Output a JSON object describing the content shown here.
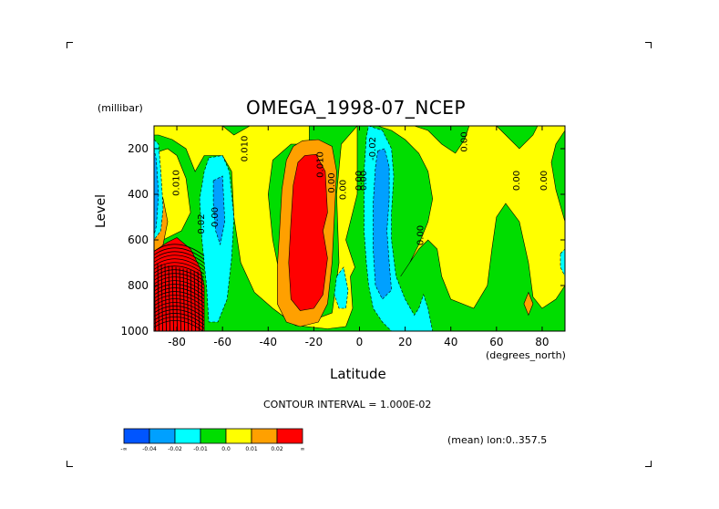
{
  "chart_data": {
    "type": "heatmap",
    "title": "OMEGA_1998-07_NCEP",
    "xlabel": "Latitude",
    "xunits": "(degrees_north)",
    "ylabel": "Level",
    "yunits": "(millibar)",
    "xlim": [
      -90,
      90
    ],
    "ylim": [
      1000,
      100
    ],
    "xticks": [
      -80,
      -60,
      -40,
      -20,
      0,
      20,
      40,
      60,
      80
    ],
    "xtick_labels": [
      "-80",
      "-60",
      "-40",
      "-20",
      "0",
      "20",
      "40",
      "60",
      "80"
    ],
    "yticks": [
      200,
      400,
      600,
      800,
      1000
    ],
    "ytick_labels": [
      "200",
      "400",
      "600",
      "800",
      "1000"
    ],
    "contour_interval_text": "CONTOUR INTERVAL = 1.000E-02",
    "mean_note": "(mean) lon:0..357.5",
    "colorbar": {
      "colors": [
        "#0055ff",
        "#00a0ff",
        "#00ffff",
        "#00dd00",
        "#ffff00",
        "#ffa000",
        "#ff0000"
      ],
      "labels": [
        "-∞",
        "-0.04",
        "-0.02",
        "-0.01",
        "0.0",
        "0.01",
        "0.02",
        "∞"
      ]
    },
    "background_color": "#00dd00",
    "regions": [
      {
        "level": 0.0,
        "color": "#ffff00",
        "poly": [
          [
            -90,
            100
          ],
          [
            -60,
            100
          ],
          [
            -55,
            140
          ],
          [
            -48,
            100
          ],
          [
            -22,
            100
          ],
          [
            -22,
            180
          ],
          [
            -30,
            180
          ],
          [
            -38,
            250
          ],
          [
            -40,
            400
          ],
          [
            -38,
            600
          ],
          [
            -34,
            800
          ],
          [
            -30,
            880
          ],
          [
            -28,
            930
          ],
          [
            -20,
            950
          ],
          [
            -12,
            920
          ],
          [
            -9,
            700
          ],
          [
            -10,
            400
          ],
          [
            -8,
            180
          ],
          [
            -1,
            100
          ],
          [
            -1,
            400
          ],
          [
            -6,
            600
          ],
          [
            -2,
            720
          ],
          [
            -4,
            760
          ],
          [
            -3,
            900
          ],
          [
            -6,
            980
          ],
          [
            -14,
            990
          ],
          [
            -28,
            975
          ],
          [
            -38,
            900
          ],
          [
            -46,
            830
          ],
          [
            -52,
            700
          ],
          [
            -55,
            500
          ],
          [
            -56,
            300
          ],
          [
            -60,
            230
          ],
          [
            -68,
            230
          ],
          [
            -72,
            300
          ],
          [
            -76,
            200
          ],
          [
            -82,
            160
          ],
          [
            -88,
            140
          ],
          [
            -90,
            140
          ]
        ]
      },
      {
        "level": 0.0,
        "color": "#ffff00",
        "poly": [
          [
            -90,
            220
          ],
          [
            -84,
            200
          ],
          [
            -80,
            230
          ],
          [
            -76,
            330
          ],
          [
            -74,
            480
          ],
          [
            -78,
            560
          ],
          [
            -86,
            600
          ],
          [
            -90,
            600
          ]
        ]
      },
      {
        "level": 0.0,
        "color": "#ffff00",
        "poly": [
          [
            8,
            100
          ],
          [
            14,
            120
          ],
          [
            20,
            160
          ],
          [
            26,
            220
          ],
          [
            30,
            300
          ],
          [
            32,
            420
          ],
          [
            30,
            520
          ],
          [
            26,
            620
          ],
          [
            22,
            700
          ],
          [
            18,
            760
          ],
          [
            22,
            700
          ],
          [
            26,
            640
          ],
          [
            30,
            600
          ],
          [
            34,
            640
          ],
          [
            36,
            760
          ],
          [
            40,
            860
          ],
          [
            50,
            900
          ],
          [
            56,
            800
          ],
          [
            58,
            640
          ],
          [
            60,
            500
          ],
          [
            64,
            440
          ],
          [
            70,
            520
          ],
          [
            74,
            700
          ],
          [
            76,
            850
          ],
          [
            80,
            900
          ],
          [
            86,
            860
          ],
          [
            90,
            800
          ],
          [
            90,
            520
          ],
          [
            86,
            380
          ],
          [
            84,
            260
          ],
          [
            86,
            180
          ],
          [
            90,
            120
          ],
          [
            90,
            100
          ],
          [
            78,
            100
          ],
          [
            76,
            140
          ],
          [
            70,
            200
          ],
          [
            64,
            140
          ],
          [
            60,
            100
          ],
          [
            48,
            100
          ],
          [
            46,
            160
          ],
          [
            42,
            220
          ],
          [
            36,
            180
          ],
          [
            30,
            120
          ],
          [
            24,
            100
          ]
        ]
      },
      {
        "level": 0.01,
        "color": "#ffa000",
        "poly": [
          [
            -90,
            320
          ],
          [
            -86,
            420
          ],
          [
            -84,
            520
          ],
          [
            -86,
            620
          ],
          [
            -90,
            680
          ]
        ]
      },
      {
        "level": 0.01,
        "color": "#ffa000",
        "poly": [
          [
            -80,
            640
          ],
          [
            -74,
            720
          ],
          [
            -70,
            820
          ],
          [
            -74,
            920
          ],
          [
            -84,
            980
          ],
          [
            -88,
            900
          ],
          [
            -88,
            760
          ],
          [
            -84,
            680
          ]
        ]
      },
      {
        "level": 0.01,
        "color": "#ffa000",
        "poly": [
          [
            -25,
            165
          ],
          [
            -18,
            160
          ],
          [
            -12,
            190
          ],
          [
            -10,
            300
          ],
          [
            -11,
            500
          ],
          [
            -12,
            700
          ],
          [
            -14,
            880
          ],
          [
            -18,
            960
          ],
          [
            -26,
            980
          ],
          [
            -32,
            960
          ],
          [
            -36,
            880
          ],
          [
            -36,
            720
          ],
          [
            -35,
            560
          ],
          [
            -34,
            380
          ],
          [
            -32,
            250
          ],
          [
            -29,
            190
          ]
        ]
      },
      {
        "level": 0.01,
        "color": "#ffa000",
        "poly": [
          [
            74,
            830
          ],
          [
            76,
            880
          ],
          [
            74,
            930
          ],
          [
            72,
            880
          ]
        ]
      },
      {
        "level": 0.02,
        "color": "#ff0000",
        "poly": [
          [
            -24,
            230
          ],
          [
            -19,
            225
          ],
          [
            -15,
            300
          ],
          [
            -14,
            480
          ],
          [
            -16,
            560
          ],
          [
            -14,
            680
          ],
          [
            -16,
            840
          ],
          [
            -20,
            900
          ],
          [
            -26,
            910
          ],
          [
            -30,
            860
          ],
          [
            -31,
            700
          ],
          [
            -30,
            520
          ],
          [
            -29,
            360
          ],
          [
            -27,
            260
          ]
        ]
      },
      {
        "level": 0.02,
        "color": "#ff0000",
        "poly": [
          [
            -90,
            650
          ],
          [
            -84,
            610
          ],
          [
            -80,
            590
          ],
          [
            -74,
            640
          ],
          [
            -70,
            720
          ],
          [
            -68,
            800
          ],
          [
            -68,
            1000
          ],
          [
            -90,
            1000
          ]
        ]
      },
      {
        "level": -0.01,
        "color": "#00ffff",
        "poly": [
          [
            -90,
            160
          ],
          [
            -88,
            180
          ],
          [
            -87,
            300
          ],
          [
            -86,
            460
          ],
          [
            -87,
            560
          ],
          [
            -90,
            600
          ]
        ]
      },
      {
        "level": -0.01,
        "color": "#00ffff",
        "poly": [
          [
            -66,
            240
          ],
          [
            -60,
            230
          ],
          [
            -57,
            300
          ],
          [
            -55,
            500
          ],
          [
            -56,
            680
          ],
          [
            -58,
            860
          ],
          [
            -62,
            960
          ],
          [
            -66,
            960
          ],
          [
            -67,
            800
          ],
          [
            -69,
            600
          ],
          [
            -70,
            420
          ],
          [
            -68,
            300
          ]
        ]
      },
      {
        "level": -0.01,
        "color": "#00ffff",
        "poly": [
          [
            4,
            100
          ],
          [
            10,
            120
          ],
          [
            14,
            200
          ],
          [
            15,
            320
          ],
          [
            14,
            480
          ],
          [
            14,
            600
          ],
          [
            16,
            760
          ],
          [
            20,
            860
          ],
          [
            24,
            930
          ],
          [
            26,
            900
          ],
          [
            28,
            840
          ],
          [
            30,
            900
          ],
          [
            32,
            1000
          ],
          [
            22,
            1000
          ],
          [
            14,
            1000
          ],
          [
            10,
            960
          ],
          [
            6,
            900
          ],
          [
            4,
            800
          ],
          [
            3,
            700
          ],
          [
            2,
            560
          ],
          [
            2,
            300
          ],
          [
            3,
            150
          ]
        ]
      },
      {
        "level": -0.01,
        "color": "#00ffff",
        "poly": [
          [
            -10,
            760
          ],
          [
            -7,
            720
          ],
          [
            -5,
            820
          ],
          [
            -6,
            900
          ],
          [
            -9,
            900
          ],
          [
            -11,
            840
          ]
        ]
      },
      {
        "level": -0.01,
        "color": "#00ffff",
        "poly": [
          [
            88,
            660
          ],
          [
            90,
            640
          ],
          [
            90,
            760
          ],
          [
            88,
            720
          ]
        ]
      },
      {
        "level": -0.02,
        "color": "#00a0ff",
        "poly": [
          [
            -90,
            200
          ],
          [
            -89,
            250
          ],
          [
            -88,
            400
          ],
          [
            -89,
            540
          ],
          [
            -90,
            580
          ]
        ]
      },
      {
        "level": -0.02,
        "color": "#00a0ff",
        "poly": [
          [
            8,
            210
          ],
          [
            11,
            200
          ],
          [
            13,
            280
          ],
          [
            13,
            420
          ],
          [
            12,
            560
          ],
          [
            13,
            700
          ],
          [
            14,
            820
          ],
          [
            10,
            860
          ],
          [
            7,
            800
          ],
          [
            6,
            640
          ],
          [
            6,
            440
          ],
          [
            7,
            280
          ]
        ]
      },
      {
        "level": -0.02,
        "color": "#00a0ff",
        "poly": [
          [
            -64,
            340
          ],
          [
            -60,
            320
          ],
          [
            -59,
            520
          ],
          [
            -61,
            620
          ],
          [
            -63,
            560
          ],
          [
            -64,
            440
          ]
        ]
      }
    ],
    "hatch": {
      "color": "#000000",
      "xrange": [
        -90,
        -68
      ],
      "yrange": [
        650,
        1000
      ]
    },
    "contour_labels": [
      {
        "text": "0.010",
        "lat": -79,
        "lev": 350
      },
      {
        "text": "0.010",
        "lat": -49,
        "lev": 200
      },
      {
        "text": "0.02",
        "lat": -68,
        "lev": 530
      },
      {
        "text": "0.00",
        "lat": -62,
        "lev": 500
      },
      {
        "text": "0.010",
        "lat": -16,
        "lev": 270
      },
      {
        "text": "0.00",
        "lat": -11,
        "lev": 350
      },
      {
        "text": "0.00",
        "lat": -6,
        "lev": 380
      },
      {
        "text": "0.00",
        "lat": 1,
        "lev": 340
      },
      {
        "text": "0.00",
        "lat": 3,
        "lev": 340
      },
      {
        "text": "-0.02",
        "lat": 7,
        "lev": 200
      },
      {
        "text": "0.00",
        "lat": 28,
        "lev": 580
      },
      {
        "text": "0.00",
        "lat": 47,
        "lev": 170
      },
      {
        "text": "0.00",
        "lat": 70,
        "lev": 340
      },
      {
        "text": "0.00",
        "lat": 82,
        "lev": 340
      }
    ]
  }
}
